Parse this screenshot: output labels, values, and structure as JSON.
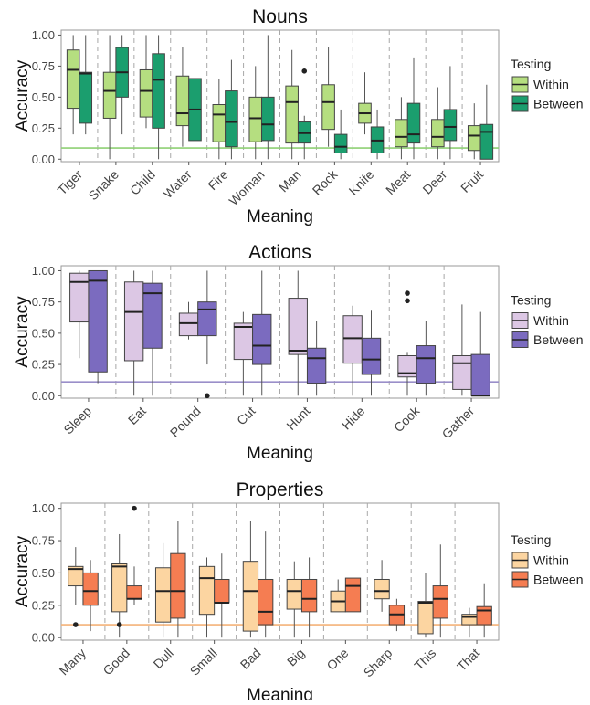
{
  "chart_data": [
    {
      "type": "boxplot",
      "title": "Nouns",
      "xlabel": "Meaning",
      "ylabel": "Accuracy",
      "ylim": [
        -0.02,
        1.04
      ],
      "yticks": [
        "0.00",
        "0.25",
        "0.50",
        "0.75",
        "1.00"
      ],
      "legend_title": "Testing",
      "legend_position": "right",
      "chance_line": 0.09,
      "colors": {
        "Within": "#b5de80",
        "Between": "#1b9e6e",
        "line": "#8fd175"
      },
      "categories": [
        "Tiger",
        "Snake",
        "Child",
        "Water",
        "Fire",
        "Woman",
        "Man",
        "Rock",
        "Knife",
        "Meat",
        "Deer",
        "Fruit"
      ],
      "series": [
        {
          "name": "Within",
          "boxes": [
            {
              "min": 0.2,
              "q1": 0.41,
              "median": 0.72,
              "q3": 0.88,
              "max": 1.0
            },
            {
              "min": 0.0,
              "q1": 0.33,
              "median": 0.55,
              "q3": 0.7,
              "max": 1.0
            },
            {
              "min": 0.25,
              "q1": 0.34,
              "median": 0.55,
              "q3": 0.72,
              "max": 1.0
            },
            {
              "min": 0.1,
              "q1": 0.27,
              "median": 0.37,
              "q3": 0.67,
              "max": 0.9
            },
            {
              "min": 0.0,
              "q1": 0.14,
              "median": 0.36,
              "q3": 0.44,
              "max": 0.65
            },
            {
              "min": 0.0,
              "q1": 0.14,
              "median": 0.33,
              "q3": 0.5,
              "max": 0.75
            },
            {
              "min": 0.0,
              "q1": 0.13,
              "median": 0.46,
              "q3": 0.59,
              "max": 0.88
            },
            {
              "min": 0.1,
              "q1": 0.24,
              "median": 0.46,
              "q3": 0.6,
              "max": 0.9
            },
            {
              "min": 0.2,
              "q1": 0.29,
              "median": 0.37,
              "q3": 0.45,
              "max": 0.7
            },
            {
              "min": 0.0,
              "q1": 0.1,
              "median": 0.18,
              "q3": 0.32,
              "max": 0.5
            },
            {
              "min": 0.0,
              "q1": 0.1,
              "median": 0.18,
              "q3": 0.32,
              "max": 0.58
            },
            {
              "min": 0.0,
              "q1": 0.07,
              "median": 0.19,
              "q3": 0.27,
              "max": 0.45
            }
          ]
        },
        {
          "name": "Between",
          "boxes": [
            {
              "min": 0.2,
              "q1": 0.29,
              "median": 0.69,
              "q3": 0.7,
              "max": 1.0
            },
            {
              "min": 0.2,
              "q1": 0.5,
              "median": 0.7,
              "q3": 0.9,
              "max": 1.0
            },
            {
              "min": 0.0,
              "q1": 0.25,
              "median": 0.64,
              "q3": 0.85,
              "max": 1.0
            },
            {
              "min": 0.0,
              "q1": 0.15,
              "median": 0.4,
              "q3": 0.65,
              "max": 0.88
            },
            {
              "min": 0.0,
              "q1": 0.1,
              "median": 0.3,
              "q3": 0.55,
              "max": 0.8
            },
            {
              "min": 0.0,
              "q1": 0.15,
              "median": 0.28,
              "q3": 0.5,
              "max": 1.0
            },
            {
              "min": 0.0,
              "q1": 0.13,
              "median": 0.21,
              "q3": 0.3,
              "max": 0.35,
              "outliers": [
                0.71
              ]
            },
            {
              "min": 0.0,
              "q1": 0.05,
              "median": 0.1,
              "q3": 0.2,
              "max": 0.4
            },
            {
              "min": 0.0,
              "q1": 0.05,
              "median": 0.15,
              "q3": 0.26,
              "max": 0.4
            },
            {
              "min": 0.0,
              "q1": 0.13,
              "median": 0.2,
              "q3": 0.45,
              "max": 0.82
            },
            {
              "min": 0.0,
              "q1": 0.15,
              "median": 0.26,
              "q3": 0.4,
              "max": 0.75
            },
            {
              "min": 0.0,
              "q1": 0.0,
              "median": 0.22,
              "q3": 0.28,
              "max": 0.6
            }
          ]
        }
      ]
    },
    {
      "type": "boxplot",
      "title": "Actions",
      "xlabel": "Meaning",
      "ylabel": "Accuracy",
      "ylim": [
        -0.02,
        1.04
      ],
      "yticks": [
        "0.00",
        "0.25",
        "0.50",
        "0.75",
        "1.00"
      ],
      "legend_title": "Testing",
      "legend_position": "right",
      "chance_line": 0.11,
      "colors": {
        "Within": "#dcc7e4",
        "Between": "#7b6bbf",
        "line": "#9a8fc9"
      },
      "categories": [
        "Sleep",
        "Eat",
        "Pound",
        "Cut",
        "Hunt",
        "Hide",
        "Cook",
        "Gather"
      ],
      "series": [
        {
          "name": "Within",
          "boxes": [
            {
              "min": 0.3,
              "q1": 0.59,
              "median": 0.91,
              "q3": 0.98,
              "max": 1.0
            },
            {
              "min": 0.0,
              "q1": 0.28,
              "median": 0.67,
              "q3": 0.91,
              "max": 1.0
            },
            {
              "min": 0.45,
              "q1": 0.48,
              "median": 0.58,
              "q3": 0.66,
              "max": 0.75
            },
            {
              "min": 0.0,
              "q1": 0.29,
              "median": 0.55,
              "q3": 0.58,
              "max": 0.67
            },
            {
              "min": 0.0,
              "q1": 0.33,
              "median": 0.36,
              "q3": 0.78,
              "max": 1.0
            },
            {
              "min": 0.0,
              "q1": 0.26,
              "median": 0.46,
              "q3": 0.64,
              "max": 0.72
            },
            {
              "min": 0.0,
              "q1": 0.15,
              "median": 0.18,
              "q3": 0.32,
              "max": 0.35,
              "outliers": [
                0.76,
                0.82
              ]
            },
            {
              "min": 0.0,
              "q1": 0.05,
              "median": 0.26,
              "q3": 0.32,
              "max": 0.73
            }
          ]
        },
        {
          "name": "Between",
          "boxes": [
            {
              "min": 0.1,
              "q1": 0.19,
              "median": 0.92,
              "q3": 1.0,
              "max": 1.0
            },
            {
              "min": 0.0,
              "q1": 0.38,
              "median": 0.82,
              "q3": 0.9,
              "max": 1.0
            },
            {
              "min": 0.25,
              "q1": 0.48,
              "median": 0.69,
              "q3": 0.75,
              "max": 1.0,
              "outliers": [
                0.0
              ]
            },
            {
              "min": 0.0,
              "q1": 0.25,
              "median": 0.4,
              "q3": 0.65,
              "max": 1.0
            },
            {
              "min": 0.0,
              "q1": 0.1,
              "median": 0.3,
              "q3": 0.38,
              "max": 0.6
            },
            {
              "min": 0.0,
              "q1": 0.17,
              "median": 0.29,
              "q3": 0.46,
              "max": 0.68
            },
            {
              "min": 0.0,
              "q1": 0.1,
              "median": 0.3,
              "q3": 0.4,
              "max": 0.6
            },
            {
              "min": 0.0,
              "q1": 0.0,
              "median": 0.0,
              "q3": 0.33,
              "max": 0.67
            }
          ]
        }
      ]
    },
    {
      "type": "boxplot",
      "title": "Properties",
      "xlabel": "Meaning",
      "ylabel": "Accuracy",
      "ylim": [
        -0.02,
        1.04
      ],
      "yticks": [
        "0.00",
        "0.25",
        "0.50",
        "0.75",
        "1.00"
      ],
      "legend_title": "Testing",
      "legend_position": "right",
      "chance_line": 0.1,
      "colors": {
        "Within": "#fcd5a1",
        "Between": "#f57d52",
        "line": "#f4b37a"
      },
      "categories": [
        "Many",
        "Good",
        "Dull",
        "Small",
        "Bad",
        "Big",
        "One",
        "Sharp",
        "This",
        "That"
      ],
      "series": [
        {
          "name": "Within",
          "boxes": [
            {
              "min": 0.25,
              "q1": 0.4,
              "median": 0.53,
              "q3": 0.55,
              "max": 0.7,
              "outliers": [
                0.1
              ]
            },
            {
              "min": 0.0,
              "q1": 0.2,
              "median": 0.55,
              "q3": 0.57,
              "max": 0.8,
              "outliers": [
                0.1
              ]
            },
            {
              "min": 0.0,
              "q1": 0.12,
              "median": 0.36,
              "q3": 0.54,
              "max": 0.73
            },
            {
              "min": 0.0,
              "q1": 0.18,
              "median": 0.46,
              "q3": 0.55,
              "max": 0.62
            },
            {
              "min": 0.0,
              "q1": 0.05,
              "median": 0.36,
              "q3": 0.59,
              "max": 0.9
            },
            {
              "min": 0.0,
              "q1": 0.22,
              "median": 0.36,
              "q3": 0.45,
              "max": 0.59
            },
            {
              "min": 0.2,
              "q1": 0.2,
              "median": 0.28,
              "q3": 0.36,
              "max": 0.45
            },
            {
              "min": 0.2,
              "q1": 0.3,
              "median": 0.36,
              "q3": 0.45,
              "max": 0.6
            },
            {
              "min": 0.0,
              "q1": 0.03,
              "median": 0.27,
              "q3": 0.28,
              "max": 0.5
            },
            {
              "min": 0.0,
              "q1": 0.1,
              "median": 0.16,
              "q3": 0.18,
              "max": 0.23
            }
          ]
        },
        {
          "name": "Between",
          "boxes": [
            {
              "min": 0.05,
              "q1": 0.25,
              "median": 0.36,
              "q3": 0.5,
              "max": 0.6
            },
            {
              "min": 0.25,
              "q1": 0.3,
              "median": 0.3,
              "q3": 0.4,
              "max": 0.55,
              "outliers": [
                1.0
              ]
            },
            {
              "min": 0.0,
              "q1": 0.15,
              "median": 0.36,
              "q3": 0.65,
              "max": 0.9
            },
            {
              "min": 0.0,
              "q1": 0.27,
              "median": 0.27,
              "q3": 0.45,
              "max": 0.65
            },
            {
              "min": 0.0,
              "q1": 0.1,
              "median": 0.2,
              "q3": 0.45,
              "max": 0.82
            },
            {
              "min": 0.0,
              "q1": 0.2,
              "median": 0.3,
              "q3": 0.45,
              "max": 0.62
            },
            {
              "min": 0.1,
              "q1": 0.2,
              "median": 0.4,
              "q3": 0.46,
              "max": 0.72
            },
            {
              "min": 0.05,
              "q1": 0.1,
              "median": 0.18,
              "q3": 0.25,
              "max": 0.3
            },
            {
              "min": 0.0,
              "q1": 0.15,
              "median": 0.3,
              "q3": 0.4,
              "max": 0.72
            },
            {
              "min": 0.0,
              "q1": 0.1,
              "median": 0.21,
              "q3": 0.24,
              "max": 0.42
            }
          ]
        }
      ]
    }
  ]
}
